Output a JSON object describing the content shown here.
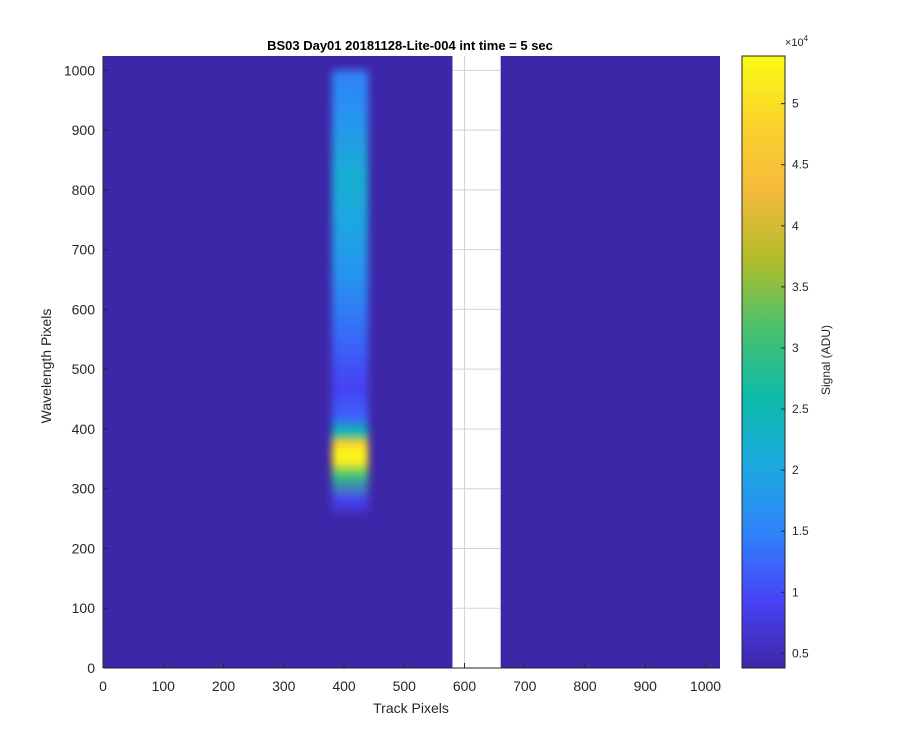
{
  "chart_data": {
    "type": "heatmap",
    "title": "BS03 Day01 20181128-Lite-004 int time = 5 sec",
    "xlabel": "Track Pixels",
    "ylabel": "Wavelength Pixels",
    "xlim": [
      0,
      1024
    ],
    "ylim": [
      0,
      1024
    ],
    "xticks": [
      0,
      100,
      200,
      300,
      400,
      500,
      600,
      700,
      800,
      900,
      1000
    ],
    "yticks": [
      0,
      100,
      200,
      300,
      400,
      500,
      600,
      700,
      800,
      900,
      1000
    ],
    "grid": true,
    "background_value": 3500,
    "masked_columns": [
      580,
      660
    ],
    "signal_band": {
      "track_center": 410,
      "track_halfwidth": 30,
      "wavelength_range": [
        250,
        1010
      ],
      "profile": [
        {
          "wavelength": 250,
          "value": 3500
        },
        {
          "wavelength": 280,
          "value": 9000
        },
        {
          "wavelength": 320,
          "value": 30000
        },
        {
          "wavelength": 345,
          "value": 52000
        },
        {
          "wavelength": 360,
          "value": 53000
        },
        {
          "wavelength": 375,
          "value": 48000
        },
        {
          "wavelength": 395,
          "value": 25000
        },
        {
          "wavelength": 420,
          "value": 12000
        },
        {
          "wavelength": 470,
          "value": 9000
        },
        {
          "wavelength": 560,
          "value": 13000
        },
        {
          "wavelength": 650,
          "value": 17000
        },
        {
          "wavelength": 750,
          "value": 20000
        },
        {
          "wavelength": 820,
          "value": 22000
        },
        {
          "wavelength": 900,
          "value": 18000
        },
        {
          "wavelength": 990,
          "value": 15000
        },
        {
          "wavelength": 1010,
          "value": 3500
        }
      ]
    },
    "colorbar": {
      "label": "Signal (ADU)",
      "exponent_label": "×10",
      "exponent": "4",
      "range": [
        3800,
        53900
      ],
      "tick_values": [
        5000,
        10000,
        15000,
        20000,
        25000,
        30000,
        35000,
        40000,
        45000,
        50000
      ],
      "tick_labels": [
        "0.5",
        "1",
        "1.5",
        "2",
        "2.5",
        "3",
        "3.5",
        "4",
        "4.5",
        "5"
      ],
      "colormap": [
        "#3e26a8",
        "#4743f8",
        "#2f84fa",
        "#1caadf",
        "#0dbbaa",
        "#4ac16d",
        "#b1bd2a",
        "#f5ba3d",
        "#fad32c",
        "#f9fb15"
      ]
    }
  }
}
